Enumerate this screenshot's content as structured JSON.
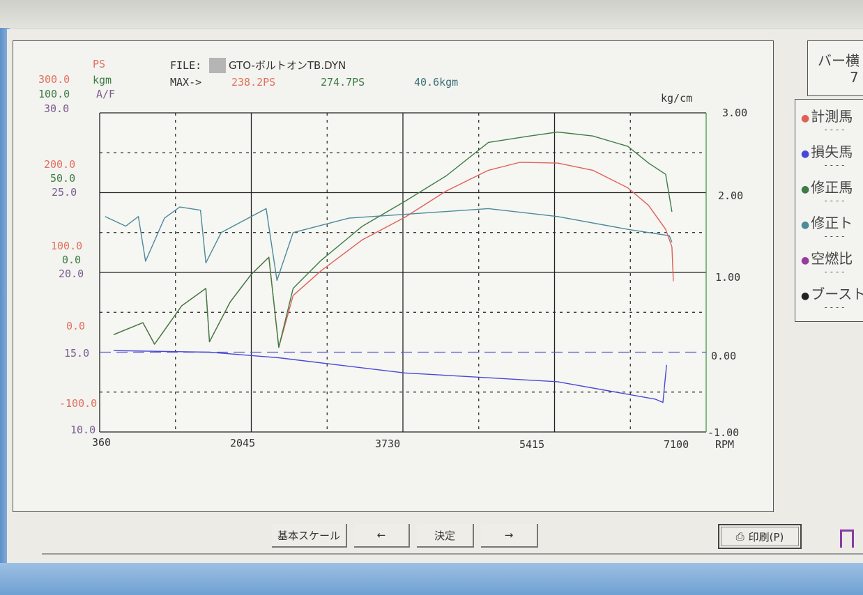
{
  "header": {
    "file_label": "FILE:",
    "file_name": "GTO-ボルトオンTB.DYN",
    "max_label": "MAX->",
    "max_measured_ps": "238.2PS",
    "max_corrected_ps": "274.7PS",
    "max_torque": "40.6kgm"
  },
  "axis_units": {
    "ps": "PS",
    "kgm": "kgm",
    "af": "A/F",
    "boost": "kg/cm",
    "rpm": "RPM"
  },
  "right_panel": {
    "top_line1": "バー横",
    "top_line2": "7",
    "legend": [
      {
        "label": "計測馬",
        "color": "#e0605a",
        "dash": "----"
      },
      {
        "label": "損失馬",
        "color": "#4848d8",
        "dash": "----"
      },
      {
        "label": "修正馬",
        "color": "#3c7c45",
        "dash": "----"
      },
      {
        "label": "修正ト",
        "color": "#4a8a9a",
        "dash": "----"
      },
      {
        "label": "空燃比",
        "color": "#9a3aa0",
        "dash": "----"
      },
      {
        "label": "ブースト",
        "color": "#222222",
        "dash": "----"
      }
    ]
  },
  "toolbar": {
    "basic_scale": "基本スケール",
    "prev": "←",
    "confirm": "決定",
    "next": "→",
    "print": "印刷(P)"
  },
  "chart_data": {
    "type": "line",
    "xlabel": "RPM",
    "xlim": [
      360,
      7100
    ],
    "x_ticks": [
      "360",
      "2045",
      "3730",
      "5415",
      "7100"
    ],
    "grid": true,
    "axes": {
      "ps": {
        "range": [
          -100,
          300
        ],
        "ticks": [
          "300.0",
          "200.0",
          "100.0",
          "0.0",
          "-100.0"
        ],
        "color": "#e0705f"
      },
      "kgm": {
        "range": [
          -100,
          100
        ],
        "ticks": [
          "100.0",
          "50.0",
          "0.0"
        ],
        "color": "#3c7c45"
      },
      "af": {
        "range": [
          10,
          30
        ],
        "ticks": [
          "30.0",
          "25.0",
          "20.0",
          "15.0",
          "10.0"
        ],
        "color": "#7a5c8e"
      },
      "boost": {
        "range": [
          -1,
          3
        ],
        "ticks": [
          "3.00",
          "2.00",
          "1.00",
          "0.00",
          "-1.00"
        ],
        "unit": "kg/cm"
      }
    },
    "reference_line_ps": 0,
    "series": [
      {
        "name": "計測馬力",
        "axis": "ps",
        "color": "#e0605a",
        "x": [
          515,
          840,
          970,
          1270,
          1540,
          1580,
          1810,
          2040,
          2240,
          2350,
          2510,
          2820,
          3280,
          3750,
          4210,
          4680,
          5030,
          5450,
          5840,
          6230,
          6460,
          6650,
          6720,
          6735
        ],
        "y": [
          22,
          37,
          10,
          58,
          80,
          13,
          63,
          97,
          119,
          6,
          71,
          102,
          141,
          169,
          202,
          228,
          238,
          237,
          228,
          206,
          184,
          154,
          132,
          89
        ]
      },
      {
        "name": "損失馬力",
        "axis": "ps",
        "color": "#4848d8",
        "x": [
          515,
          1580,
          2350,
          3750,
          5450,
          6540,
          6620,
          6660
        ],
        "y": [
          2,
          0,
          -7,
          -26,
          -37,
          -59,
          -63,
          -16
        ]
      },
      {
        "name": "修正馬力",
        "axis": "ps",
        "color": "#3c7c45",
        "x": [
          515,
          840,
          970,
          1270,
          1540,
          1580,
          1810,
          2040,
          2240,
          2350,
          2510,
          2820,
          3280,
          3750,
          4210,
          4680,
          5140,
          5450,
          5840,
          6230,
          6460,
          6650,
          6720
        ],
        "y": [
          22,
          37,
          10,
          58,
          80,
          13,
          63,
          97,
          119,
          6,
          80,
          115,
          158,
          189,
          221,
          263,
          271,
          276,
          271,
          258,
          237,
          223,
          176
        ]
      },
      {
        "name": "修正トルク",
        "axis": "kgm",
        "color": "#4a8a9a",
        "x": [
          420,
          650,
          790,
          870,
          1080,
          1250,
          1480,
          1540,
          1710,
          2210,
          2330,
          2510,
          3130,
          3900,
          4680,
          5450,
          6230,
          6690,
          6720
        ],
        "y": [
          35,
          29,
          35,
          7,
          34,
          41,
          39,
          6,
          25,
          40,
          -5,
          25,
          34,
          37,
          40,
          35,
          27,
          23,
          19
        ]
      }
    ]
  }
}
